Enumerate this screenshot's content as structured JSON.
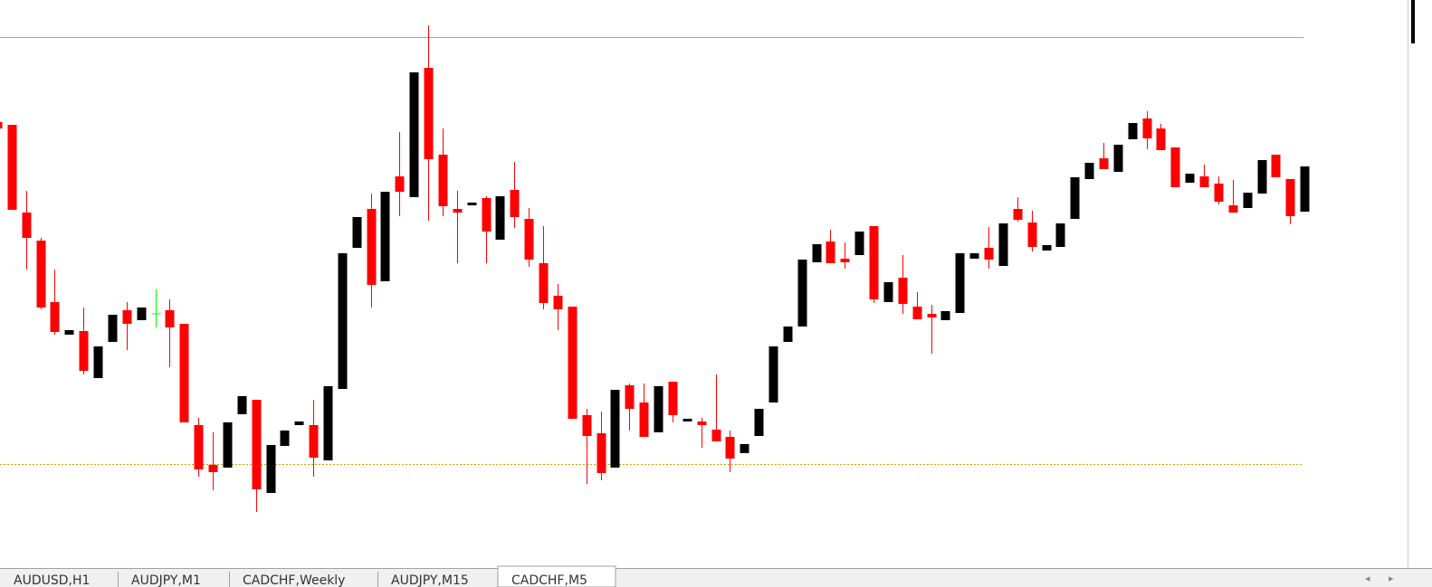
{
  "chart_data": {
    "type": "candlestick",
    "open": [
      495,
      492,
      395,
      364,
      296,
      260,
      264,
      212,
      252,
      287,
      276,
      283,
      287,
      272,
      160,
      116,
      113,
      172,
      188,
      85,
      137,
      160,
      160,
      121,
      200,
      356,
      399,
      319,
      435,
      412,
      555,
      459,
      399,
      403,
      411,
      365,
      420,
      388,
      339,
      303,
      291,
      171,
      151,
      113,
      204,
      185,
      152,
      208,
      164,
      164,
      155,
      147,
      129,
      148,
      185,
      252,
      269,
      340,
      363,
      344,
      348,
      380,
      296,
      323,
      291,
      283,
      276,
      284,
      344,
      356,
      336,
      399,
      384,
      353,
      357,
      388,
      432,
      455,
      440,
      476,
      499,
      488,
      467,
      428,
      435,
      427,
      403,
      400,
      416,
      459,
      432,
      396
    ],
    "high": [
      495,
      492,
      419,
      367,
      332,
      265,
      290,
      247,
      282,
      296,
      290,
      310,
      299,
      272,
      168,
      152,
      163,
      192,
      188,
      138,
      154,
      164,
      188,
      203,
      350,
      390,
      416,
      418,
      484,
      550,
      602,
      488,
      419,
      406,
      413,
      413,
      451,
      400,
      380,
      316,
      291,
      178,
      175,
      199,
      206,
      206,
      203,
      208,
      167,
      168,
      216,
      154,
      139,
      178,
      247,
      269,
      343,
      360,
      376,
      362,
      374,
      380,
      318,
      348,
      307,
      293,
      286,
      350,
      350,
      379,
      383,
      412,
      397,
      359,
      383,
      434,
      450,
      472,
      470,
      494,
      507,
      493,
      467,
      438,
      448,
      435,
      431,
      417,
      453,
      459,
      432,
      446
    ],
    "low": [
      488,
      398,
      332,
      288,
      260,
      260,
      216,
      212,
      252,
      243,
      276,
      268,
      224,
      163,
      103,
      88,
      113,
      172,
      64,
      85,
      137,
      160,
      103,
      121,
      200,
      356,
      290,
      319,
      391,
      412,
      386,
      391,
      339,
      403,
      339,
      365,
      378,
      335,
      288,
      265,
      167,
      95,
      99,
      113,
      154,
      147,
      152,
      163,
      164,
      135,
      142,
      108,
      129,
      148,
      185,
      252,
      269,
      340,
      339,
      333,
      348,
      295,
      296,
      283,
      277,
      239,
      276,
      284,
      344,
      333,
      336,
      385,
      352,
      353,
      357,
      388,
      432,
      443,
      440,
      476,
      465,
      464,
      423,
      428,
      423,
      404,
      395,
      400,
      416,
      434,
      382,
      396
    ],
    "close": [
      488,
      398,
      367,
      290,
      263,
      265,
      220,
      247,
      282,
      272,
      290,
      283,
      268,
      163,
      111,
      108,
      163,
      192,
      89,
      138,
      154,
      164,
      124,
      203,
      350,
      390,
      315,
      418,
      418,
      550,
      454,
      402,
      395,
      406,
      374,
      413,
      390,
      343,
      295,
      288,
      167,
      148,
      107,
      199,
      178,
      147,
      203,
      171,
      167,
      160,
      142,
      123,
      139,
      178,
      247,
      269,
      343,
      360,
      339,
      340,
      374,
      299,
      318,
      294,
      277,
      279,
      286,
      350,
      350,
      343,
      383,
      387,
      357,
      359,
      383,
      434,
      450,
      443,
      470,
      494,
      477,
      464,
      423,
      438,
      423,
      407,
      395,
      417,
      453,
      434,
      391,
      446
    ],
    "bull_color": "#000000",
    "bear_color": "#ff0000",
    "doji_color": "#00ff00",
    "ylim": [
      0,
      630
    ],
    "levels": [
      {
        "value": 589,
        "color": "#8fa8c8"
      },
      {
        "value": 117,
        "color": "#d4a000"
      }
    ]
  },
  "tabs": [
    "AUDUSD,H1",
    "AUDJPY,M1",
    "CADCHF,Weekly",
    "AUDJPY,M15",
    "CADCHF,M5"
  ],
  "active_tab": 4
}
